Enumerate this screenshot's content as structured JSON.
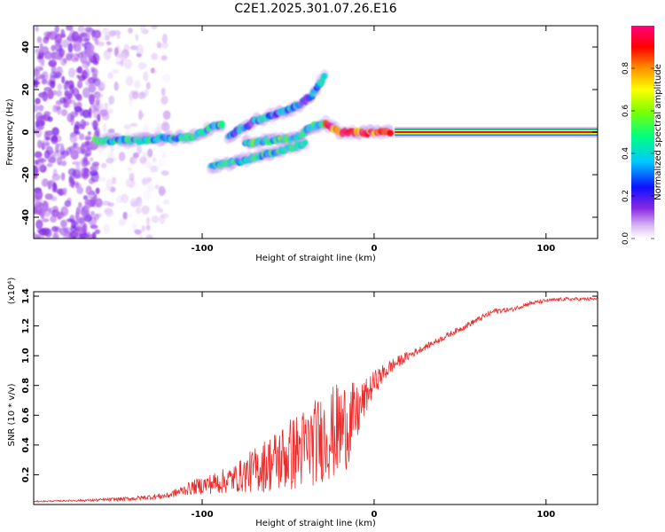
{
  "title": "C2E1.2025.301.07.26.E16",
  "colors": {
    "snr_line": "#ee2b2b",
    "frame": "#000000",
    "background": "#ffffff"
  },
  "chart_data": [
    {
      "type": "heatmap",
      "name": "spectrogram",
      "xlabel": "Height of straight line (km)",
      "ylabel": "Frequency (Hz)",
      "xlim": [
        -198,
        130
      ],
      "ylim": [
        -50,
        50
      ],
      "xticks": [
        -100,
        0,
        100
      ],
      "xtick_labels": [
        "-100",
        "0",
        "100"
      ],
      "yticks": [
        -40,
        -20,
        0,
        20,
        40
      ],
      "ytick_labels": [
        "-40",
        "-20",
        "0",
        "20",
        "40"
      ],
      "colorbar": {
        "label": "Normalized spectral amplitude",
        "range": [
          0,
          1
        ],
        "ticks": [
          0,
          0.2,
          0.4,
          0.6,
          0.8
        ],
        "tick_labels": [
          "0.0",
          "0.2",
          "0.4",
          "0.6",
          "0.8"
        ]
      },
      "features": [
        {
          "name": "scattered noise",
          "x_range": [
            -198,
            -160
          ],
          "freq_range": [
            -50,
            50
          ],
          "amplitude": 0.12
        },
        {
          "name": "weak scatter",
          "x_range": [
            -160,
            -120
          ],
          "freq_range": [
            -50,
            50
          ],
          "amplitude": 0.05
        },
        {
          "name": "main trace",
          "points": [
            [
              -162,
              -4
            ],
            [
              -140,
              -4
            ],
            [
              -120,
              -3
            ],
            [
              -105,
              -2
            ],
            [
              -95,
              2
            ],
            [
              -88,
              4
            ]
          ],
          "amplitude": 0.4
        },
        {
          "name": "upper branch",
          "points": [
            [
              -85,
              -2
            ],
            [
              -70,
              5
            ],
            [
              -55,
              9
            ],
            [
              -45,
              12
            ],
            [
              -35,
              18
            ],
            [
              -28,
              28
            ]
          ],
          "amplitude": 0.3
        },
        {
          "name": "middle branch",
          "points": [
            [
              -75,
              -5
            ],
            [
              -60,
              -4
            ],
            [
              -45,
              -3
            ],
            [
              -35,
              3
            ],
            [
              -28,
              4
            ]
          ],
          "amplitude": 0.45
        },
        {
          "name": "lower branch",
          "points": [
            [
              -95,
              -16
            ],
            [
              -80,
              -14
            ],
            [
              -65,
              -11
            ],
            [
              -50,
              -8
            ],
            [
              -40,
              -5
            ]
          ],
          "amplitude": 0.4
        },
        {
          "name": "converging trace",
          "points": [
            [
              -28,
              4
            ],
            [
              -20,
              0
            ],
            [
              -10,
              0
            ],
            [
              0,
              0
            ],
            [
              10,
              0
            ]
          ],
          "amplitude": 0.85
        },
        {
          "name": "constant carrier",
          "x_range": [
            12,
            130
          ],
          "freq": 0,
          "amplitude": 0.95
        }
      ]
    },
    {
      "type": "line",
      "name": "snr",
      "xlabel": "Height of straight line (km)",
      "ylabel": "SNR (10 * v/v)",
      "y_multiplier": "(x10⁴)",
      "xlim": [
        -198,
        130
      ],
      "ylim": [
        0,
        1.43
      ],
      "xticks": [
        -100,
        0,
        100
      ],
      "xtick_labels": [
        "-100",
        "0",
        "100"
      ],
      "yticks": [
        0.2,
        0.4,
        0.6,
        0.8,
        1.0,
        1.2,
        1.4
      ],
      "ytick_labels": [
        "0.2",
        "0.4",
        "0.6",
        "0.8",
        "1.0",
        "1.2",
        "1.4"
      ],
      "x": [
        -198,
        -180,
        -160,
        -140,
        -120,
        -110,
        -100,
        -90,
        -80,
        -70,
        -60,
        -50,
        -40,
        -30,
        -20,
        -15,
        -10,
        -5,
        0,
        10,
        20,
        30,
        40,
        50,
        60,
        70,
        80,
        90,
        100,
        110,
        120,
        130
      ],
      "y": [
        0.02,
        0.025,
        0.03,
        0.04,
        0.06,
        0.1,
        0.13,
        0.15,
        0.18,
        0.23,
        0.28,
        0.33,
        0.38,
        0.45,
        0.5,
        0.55,
        0.6,
        0.72,
        0.82,
        0.93,
        1.0,
        1.06,
        1.12,
        1.18,
        1.24,
        1.3,
        1.31,
        1.35,
        1.37,
        1.38,
        1.38,
        1.38
      ],
      "noise_amplitude": [
        0.004,
        0.005,
        0.01,
        0.015,
        0.02,
        0.04,
        0.06,
        0.08,
        0.1,
        0.15,
        0.2,
        0.25,
        0.28,
        0.3,
        0.33,
        0.3,
        0.2,
        0.12,
        0.08,
        0.05,
        0.03,
        0.02,
        0.02,
        0.02,
        0.02,
        0.02,
        0.015,
        0.015,
        0.012,
        0.012,
        0.012,
        0.012
      ]
    }
  ]
}
